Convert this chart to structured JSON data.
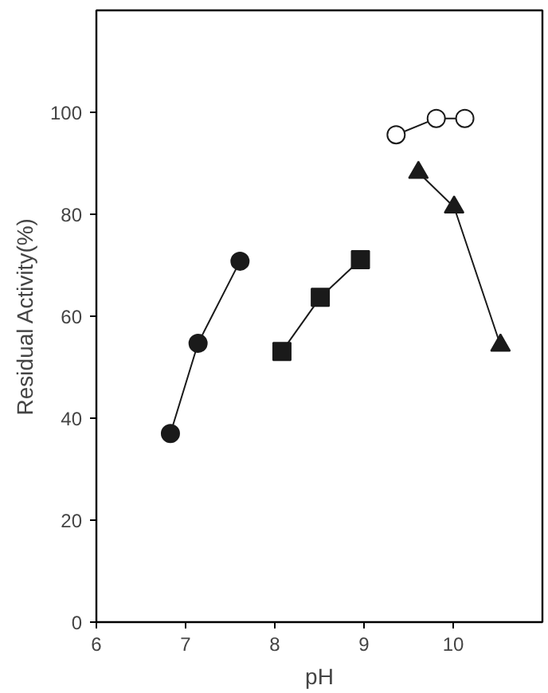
{
  "chart_data": {
    "type": "line",
    "xlabel": "pH",
    "ylabel": "Residual Activity(%)",
    "xlim": [
      6,
      11
    ],
    "ylim": [
      0,
      120
    ],
    "xticks": [
      6,
      7,
      8,
      9,
      10
    ],
    "yticks": [
      0,
      20,
      40,
      60,
      80,
      100
    ],
    "grid": false,
    "series": [
      {
        "color": "#1a1a1a",
        "marker": "circle",
        "x": [
          6.83,
          7.14,
          7.61
        ],
        "values": [
          37,
          54.7,
          70.8
        ]
      },
      {
        "color": "#1a1a1a",
        "marker": "square",
        "x": [
          8.08,
          8.51,
          8.96
        ],
        "values": [
          53.1,
          63.7,
          71.1
        ]
      },
      {
        "color": "#ffffff",
        "marker": "circle",
        "x": [
          9.36,
          9.81,
          10.13
        ],
        "values": [
          95.6,
          98.8,
          98.8
        ]
      },
      {
        "color": "#1a1a1a",
        "marker": "triangle",
        "x": [
          9.61,
          10.01,
          10.53
        ],
        "values": [
          88.2,
          81.4,
          54.3
        ]
      }
    ]
  }
}
